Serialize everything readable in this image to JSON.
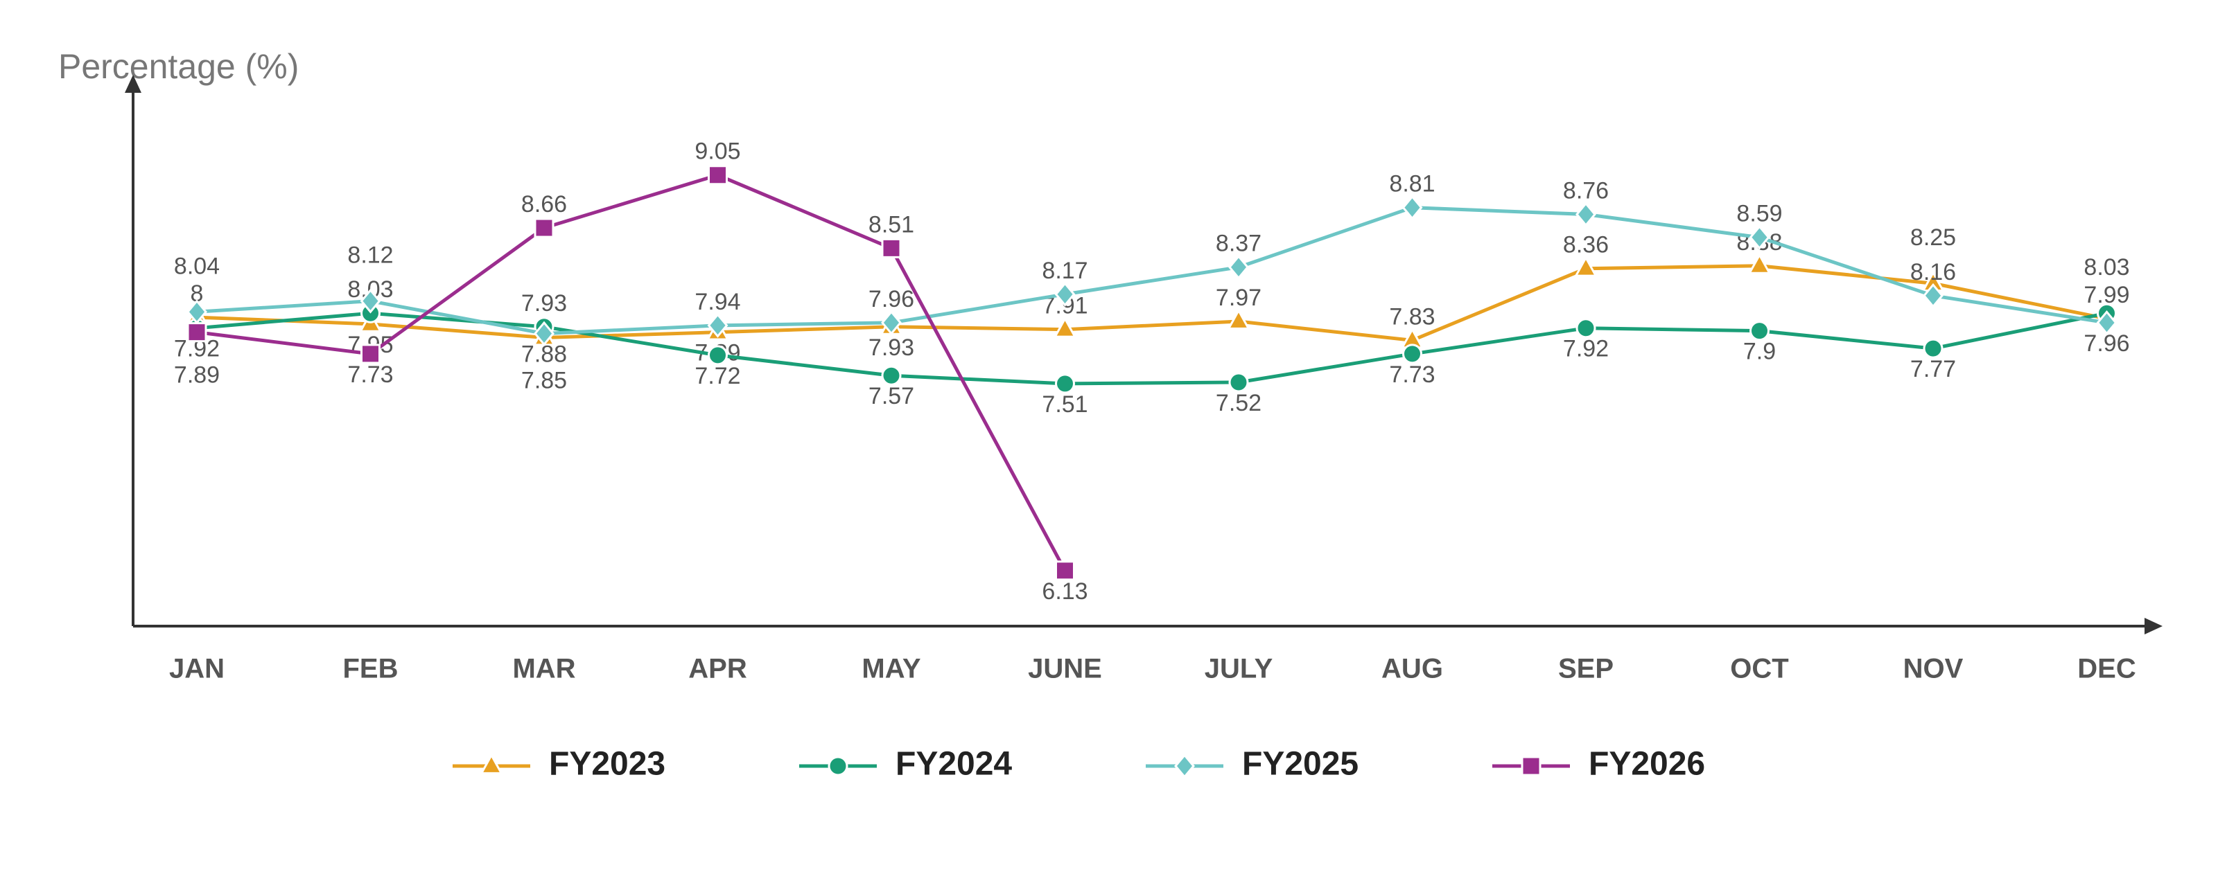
{
  "chart_data": {
    "type": "line",
    "y_label": "Percentage (%)",
    "categories": [
      "JAN",
      "FEB",
      "MAR",
      "APR",
      "MAY",
      "JUNE",
      "JULY",
      "AUG",
      "SEP",
      "OCT",
      "NOV",
      "DEC"
    ],
    "ylim": [
      5.72,
      9.78
    ],
    "series": [
      {
        "name": "FY2023",
        "color": "#e8a020",
        "marker": "triangle",
        "values": [
          8.0,
          7.95,
          7.85,
          7.89,
          7.93,
          7.91,
          7.97,
          7.83,
          8.36,
          8.38,
          8.25,
          7.99
        ]
      },
      {
        "name": "FY2024",
        "color": "#1a9e77",
        "marker": "circle",
        "values": [
          7.92,
          8.03,
          7.93,
          7.72,
          7.57,
          7.51,
          7.52,
          7.73,
          7.92,
          7.9,
          7.77,
          8.03
        ]
      },
      {
        "name": "FY2025",
        "color": "#6cc5c5",
        "marker": "diamond",
        "values": [
          8.04,
          8.12,
          7.88,
          7.94,
          7.96,
          8.17,
          8.37,
          8.81,
          8.76,
          8.59,
          8.16,
          7.96
        ]
      },
      {
        "name": "FY2026",
        "color": "#9b2d8e",
        "marker": "square",
        "values": [
          7.89,
          7.73,
          8.66,
          9.05,
          8.51,
          6.13,
          null,
          null,
          null,
          null,
          null,
          null
        ]
      }
    ]
  }
}
